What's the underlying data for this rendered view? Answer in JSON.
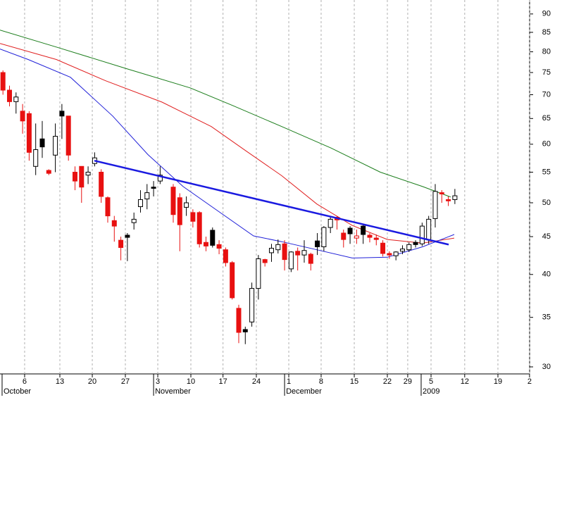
{
  "chart_data": {
    "type": "candlestick",
    "log_y": true,
    "grid_x": true,
    "up_color": "#000000",
    "down_color": "#e81010",
    "xlim": [
      -0.45,
      80.41
    ],
    "ylim": [
      29.35,
      94
    ],
    "yticks": [
      30,
      35,
      40,
      45,
      50,
      55,
      60,
      65,
      70,
      75,
      80,
      85,
      90
    ],
    "xticks": [
      {
        "value": 3.31,
        "label": "6"
      },
      {
        "value": 8.69,
        "label": "13"
      },
      {
        "value": 13.64,
        "label": "20"
      },
      {
        "value": 18.69,
        "label": "27"
      },
      {
        "value": 23.64,
        "label": "3"
      },
      {
        "value": 28.69,
        "label": "10"
      },
      {
        "value": 33.6,
        "label": "17"
      },
      {
        "value": 38.69,
        "label": "24"
      },
      {
        "value": 43.64,
        "label": "1"
      },
      {
        "value": 48.58,
        "label": "8"
      },
      {
        "value": 53.64,
        "label": "15"
      },
      {
        "value": 58.69,
        "label": "22"
      },
      {
        "value": 61.8,
        "label": "29"
      },
      {
        "value": 65.36,
        "label": "5"
      },
      {
        "value": 70.5,
        "label": "12"
      },
      {
        "value": 75.57,
        "label": "19"
      },
      {
        "value": 80.4,
        "label": "2"
      }
    ],
    "months": [
      {
        "label": "October",
        "x": -0.13
      },
      {
        "label": "November",
        "x": 23
      },
      {
        "label": "December",
        "x": 43
      },
      {
        "label": "2009",
        "x": 63.85
      }
    ],
    "x": [
      0,
      1,
      2,
      3,
      4,
      5,
      6,
      7,
      8,
      9,
      10,
      11,
      12,
      13,
      14,
      15,
      16,
      17,
      18,
      19,
      20,
      21,
      22,
      23,
      24,
      26,
      27,
      28,
      29,
      30,
      31,
      32,
      33,
      34,
      35,
      36,
      37,
      38,
      39,
      40,
      41,
      42,
      43,
      44,
      45,
      46,
      47,
      48,
      49,
      50,
      51,
      52,
      53,
      54,
      55,
      56,
      57,
      58,
      59,
      60,
      61,
      62,
      63,
      64,
      65,
      66,
      67,
      68,
      69
    ],
    "open": [
      75,
      71,
      68.5,
      66.5,
      66,
      56,
      61,
      55.3,
      58,
      66.5,
      65.5,
      55,
      56,
      54.5,
      56.5,
      55,
      50.8,
      47.3,
      44.5,
      45.2,
      47,
      49.4,
      50.6,
      52.5,
      53.5,
      52.5,
      50.8,
      49.3,
      48.5,
      48.5,
      44.2,
      45.9,
      43.9,
      43.2,
      41.5,
      36,
      33.7,
      34.5,
      38.3,
      41.9,
      42.8,
      43.2,
      44,
      40.7,
      43,
      42.5,
      42.6,
      44.4,
      43.6,
      46.3,
      47.8,
      45.5,
      46.2,
      44.8,
      46.5,
      45.2,
      44.8,
      44.1,
      42.7,
      42.4,
      43,
      43.2,
      44.2,
      44,
      44.6,
      47.6,
      51.6,
      50.5,
      50.5
    ],
    "high": [
      75.5,
      72,
      70.5,
      68,
      66.5,
      64,
      64.5,
      55.5,
      64,
      68,
      65.5,
      56,
      56,
      56,
      58.5,
      55.5,
      51,
      48,
      45,
      45.5,
      48.5,
      52,
      53,
      53.5,
      56,
      53,
      51.5,
      51,
      49,
      48.7,
      45,
      46.3,
      44.5,
      43.5,
      41.7,
      36.4,
      34,
      39,
      42.5,
      42,
      44,
      44.6,
      44.5,
      43,
      43.5,
      44.5,
      42.8,
      45.5,
      46.5,
      48,
      48,
      46,
      46.5,
      46,
      46.7,
      45.5,
      45.3,
      44.5,
      43,
      43,
      43.8,
      44.2,
      44.5,
      47,
      48,
      53,
      52,
      51,
      52.2
    ],
    "low": [
      70,
      67.5,
      66,
      62,
      57,
      54.5,
      57.5,
      54.5,
      55,
      61,
      57,
      52,
      50,
      53,
      56,
      50,
      47,
      44.3,
      41.8,
      41.7,
      46,
      48.5,
      49,
      51,
      53,
      47,
      43,
      48,
      46.3,
      43.5,
      43,
      43.5,
      42.6,
      41,
      37,
      32.3,
      32.2,
      34,
      37,
      41,
      41.6,
      42.7,
      40.5,
      40.3,
      40.5,
      41.5,
      40.5,
      42.5,
      43,
      45.5,
      46,
      43.5,
      44,
      44,
      44,
      44.2,
      43.8,
      42.3,
      42,
      41.8,
      42.6,
      42.9,
      43.5,
      43.7,
      44,
      46.3,
      50,
      49.5,
      49.8
    ],
    "close": [
      71,
      68.5,
      69.5,
      64.5,
      58.5,
      59,
      59.5,
      54.8,
      61.5,
      65.5,
      58,
      53.5,
      52.5,
      55,
      57.5,
      51,
      48,
      46.5,
      43.5,
      44.9,
      47.5,
      50.5,
      51.6,
      52.3,
      54.5,
      48.2,
      46.7,
      50,
      47.2,
      44,
      43.7,
      43.8,
      43.4,
      41.5,
      37.2,
      33.4,
      33.45,
      38.3,
      42,
      41.5,
      43.4,
      43.9,
      41.9,
      42.9,
      42.5,
      43.1,
      41.4,
      43.6,
      46.3,
      47.5,
      47.4,
      44.6,
      45.4,
      45.1,
      45.3,
      44.9,
      44.6,
      42.7,
      42.5,
      42.9,
      43.3,
      43.9,
      43.9,
      46.5,
      47.5,
      51.8,
      51.4,
      50.3,
      51.1
    ],
    "lines": [
      {
        "color": "#1b7d1b",
        "x": [
          -0.45,
          8.15,
          18.9,
          28.58,
          35.03,
          42.56,
          50.09,
          57.61,
          64.07,
          68.37
        ],
        "values": [
          85.6,
          81.2,
          75.9,
          71.5,
          67.7,
          63.4,
          59.3,
          55.0,
          52.6,
          50.9
        ]
      },
      {
        "color": "#e02020",
        "x": [
          -0.45,
          8.15,
          15.68,
          24.28,
          31.81,
          37.18,
          42.56,
          47.94,
          53.31,
          58.69,
          64.07,
          68.9
        ],
        "values": [
          82.1,
          78.1,
          73.1,
          68.4,
          63.4,
          58.7,
          54.4,
          49.8,
          46.6,
          44.6,
          44.1,
          44.8
        ]
      },
      {
        "color": "#2020d8",
        "x": [
          -0.45,
          3.85,
          10.3,
          16.75,
          22.13,
          27.51,
          32.88,
          38.26,
          42.56,
          47.94,
          53.31,
          58.69,
          64.07,
          68.9
        ],
        "values": [
          80.7,
          78.1,
          73.9,
          65.5,
          58.1,
          52.6,
          48.7,
          45.1,
          44.3,
          43.2,
          42.1,
          42.2,
          43.6,
          45.3
        ]
      }
    ],
    "trendline": {
      "color": "#1a1ae0",
      "x": [
        13.96,
        68.05
      ],
      "values": [
        57.0,
        43.9
      ]
    }
  }
}
